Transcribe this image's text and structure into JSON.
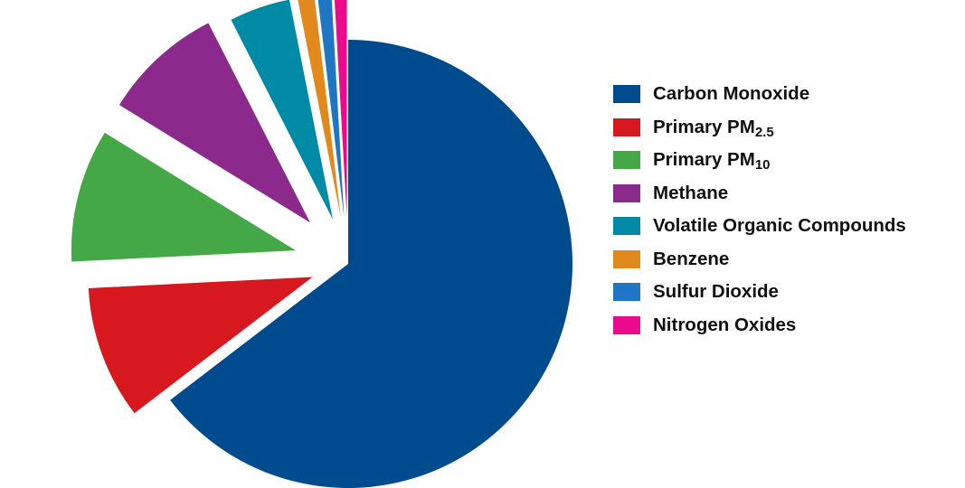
{
  "chart_data": {
    "type": "pie",
    "exploded": true,
    "start_angle_deg": 0,
    "direction": "clockwise",
    "legend_position": "right",
    "slices": [
      {
        "label": "Carbon Monoxide",
        "label_main": "Carbon Monoxide",
        "label_sub": "",
        "value": 64.6,
        "color": "#004b8d"
      },
      {
        "label": "Primary PM2.5",
        "label_main": "Primary PM",
        "label_sub": "2.5",
        "value": 9.6,
        "color": "#d7191f"
      },
      {
        "label": "Primary PM10",
        "label_main": "Primary PM",
        "label_sub": "10",
        "value": 9.6,
        "color": "#44a847"
      },
      {
        "label": "Methane",
        "label_main": "Methane",
        "label_sub": "",
        "value": 8.7,
        "color": "#8b2a8c"
      },
      {
        "label": "Volatile Organic Compounds",
        "label_main": "Volatile Organic Compounds",
        "label_sub": "",
        "value": 4.4,
        "color": "#008aa5"
      },
      {
        "label": "Benzene",
        "label_main": "Benzene",
        "label_sub": "",
        "value": 1.2,
        "color": "#e18a1b"
      },
      {
        "label": "Sulfur Dioxide",
        "label_main": "Sulfur Dioxide",
        "label_sub": "",
        "value": 1.0,
        "color": "#1f77c4"
      },
      {
        "label": "Nitrogen Oxides",
        "label_main": "Nitrogen Oxides",
        "label_sub": "",
        "value": 0.9,
        "color": "#ea0a8c"
      }
    ]
  }
}
